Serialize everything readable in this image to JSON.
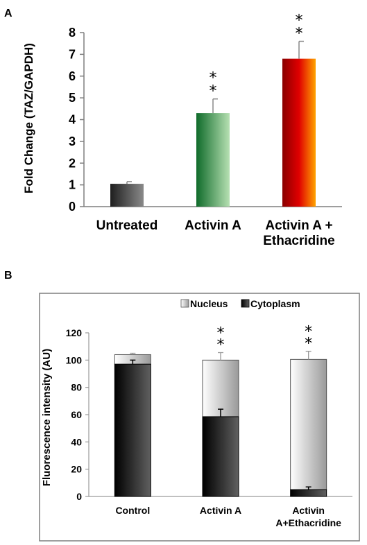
{
  "chart_data": [
    {
      "panel": "A",
      "type": "bar",
      "ylabel": "Fold Change (TAZ/GAPDH)",
      "xlabel": "",
      "ylim": [
        0,
        8
      ],
      "yticks": [
        "0",
        "1",
        "2",
        "3",
        "4",
        "5",
        "6",
        "7",
        "8"
      ],
      "categories": [
        [
          "Untreated"
        ],
        [
          "Activin A"
        ],
        [
          "Activin A +",
          "Ethacridine"
        ]
      ],
      "values": [
        1.05,
        4.3,
        6.8
      ],
      "errors": [
        0.1,
        0.65,
        0.8
      ],
      "significance": [
        "",
        "**",
        "**"
      ],
      "colors": {
        "untreated": [
          "#1e1e1e",
          "#8a8a8a"
        ],
        "activin": [
          "#0f6b2a",
          "#b6e0b2"
        ],
        "ethacridine": [
          "#8a0000",
          "#e00000",
          "#ffa300"
        ],
        "axis": "#7f7f7f"
      },
      "grid": false,
      "legend": "none"
    },
    {
      "panel": "B",
      "type": "bar",
      "stacked": true,
      "ylabel": "Fluorescence intensity (AU)",
      "xlabel": "",
      "ylim": [
        0,
        120
      ],
      "yticks": [
        "0",
        "20",
        "40",
        "60",
        "80",
        "100",
        "120"
      ],
      "categories": [
        [
          "Control"
        ],
        [
          "Activin A"
        ],
        [
          "Activin",
          "A+Ethacridine"
        ]
      ],
      "series": [
        {
          "name": "Cytoplasm",
          "values": [
            97,
            58.5,
            5
          ],
          "errors": [
            3,
            5.5,
            2
          ]
        },
        {
          "name": "Nucleus",
          "values": [
            7,
            41.5,
            95.5
          ],
          "errors": [
            1,
            5.5,
            6
          ]
        }
      ],
      "significance": [
        "",
        "**",
        "**"
      ],
      "colors": {
        "nucleus": [
          "#ffffff",
          "#9a9a9a"
        ],
        "cytoplasm": [
          "#000000",
          "#606060"
        ],
        "frame": "#7f7f7f",
        "axis": "#9a9a9a"
      },
      "grid": false,
      "legend": "top"
    }
  ],
  "labels": {
    "panel_a": "A",
    "panel_b": "B"
  }
}
